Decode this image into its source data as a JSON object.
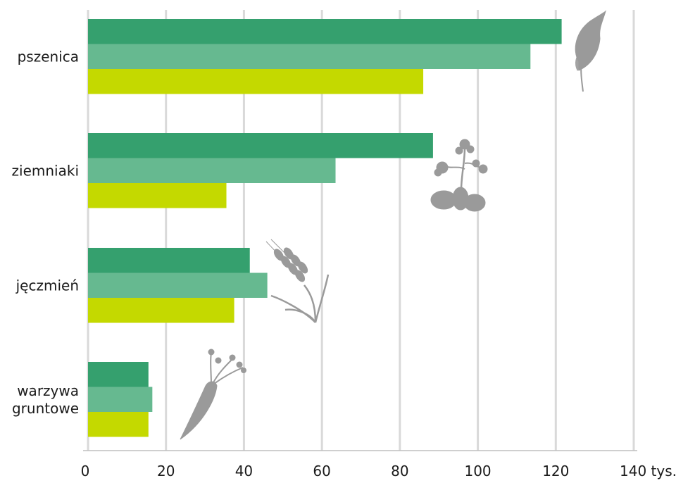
{
  "chart_data": {
    "type": "bar",
    "orientation": "horizontal",
    "categories": [
      [
        "pszenica"
      ],
      [
        "ziemniaki"
      ],
      [
        "jęczmień"
      ],
      [
        "warzywa",
        "gruntowe"
      ]
    ],
    "series": [
      {
        "color": "#35a06e",
        "values": [
          121.5,
          88.5,
          41.5,
          15.5
        ]
      },
      {
        "color": "#66b990",
        "values": [
          113.5,
          63.5,
          46,
          16.5
        ]
      },
      {
        "color": "#c4d900",
        "values": [
          86,
          35.5,
          37.5,
          15.5
        ]
      }
    ],
    "xlim": [
      0,
      140
    ],
    "x_ticks": [
      "0",
      "20",
      "40",
      "60",
      "80",
      "100",
      "120",
      "140 tys."
    ],
    "grid": true,
    "icons": [
      "wheat-icon",
      "potato-plant-icon",
      "barley-icon",
      "carrot-icon"
    ]
  }
}
